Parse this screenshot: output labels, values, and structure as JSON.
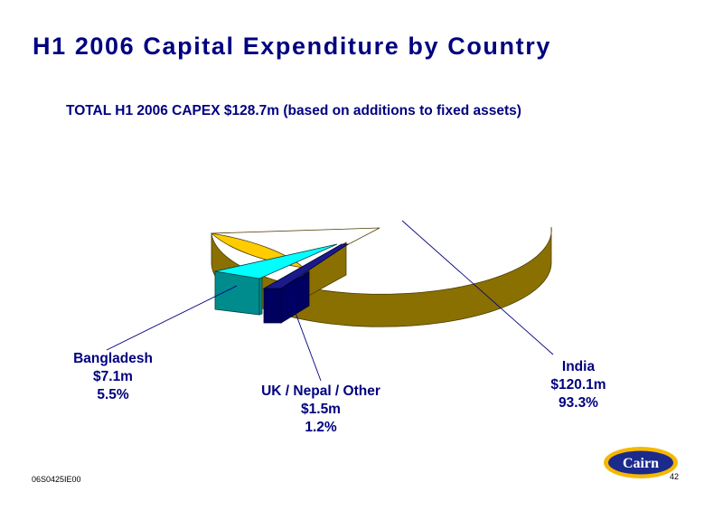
{
  "title": "H1 2006 Capital Expenditure by Country",
  "subtitle": "TOTAL H1 2006 CAPEX $128.7m (based on additions to fixed assets)",
  "footer": {
    "code": "06S0425IE00",
    "page_number": "42"
  },
  "logo": {
    "text": "Cairn",
    "colors": {
      "ring": "#f5b800",
      "body": "#1c2a8c",
      "text": "#ffffff"
    }
  },
  "chart_data": {
    "type": "pie",
    "style": "3d-exploded",
    "slices": [
      {
        "label": "India",
        "value_text": "$120.1m",
        "percent_text": "93.3%",
        "value": 120.1,
        "percent": 93.3,
        "color": "#ffcc00",
        "side_color": "#8a7000"
      },
      {
        "label": "UK / Nepal / Other",
        "value_text": "$1.5m",
        "percent_text": "1.2%",
        "value": 1.5,
        "percent": 1.2,
        "color": "#1a1a8c",
        "side_color": "#000060"
      },
      {
        "label": "Bangladesh",
        "value_text": "$7.1m",
        "percent_text": "5.5%",
        "value": 7.1,
        "percent": 5.5,
        "color": "#00ffff",
        "side_color": "#008c8c"
      }
    ]
  }
}
